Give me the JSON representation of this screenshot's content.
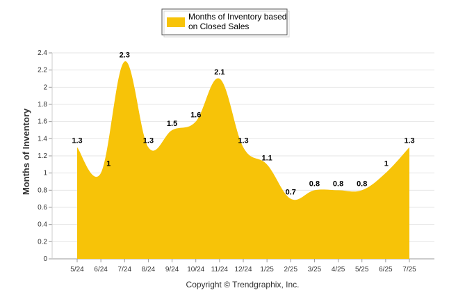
{
  "chart_data": {
    "type": "area",
    "categories": [
      "5/24",
      "6/24",
      "7/24",
      "8/24",
      "9/24",
      "10/24",
      "11/24",
      "12/24",
      "1/25",
      "2/25",
      "3/25",
      "4/25",
      "5/25",
      "6/25",
      "7/25"
    ],
    "series": [
      {
        "name": "Months of Inventory based on Closed Sales",
        "values": [
          1.3,
          1,
          2.3,
          1.3,
          1.5,
          1.6,
          2.1,
          1.3,
          1.1,
          0.7,
          0.8,
          0.8,
          0.8,
          1,
          1.3
        ],
        "labels": [
          "1.3",
          "1",
          "2.3",
          "1.3",
          "1.5",
          "1.6",
          "2.1",
          "1.3",
          "1.1",
          "0.7",
          "0.8",
          "0.8",
          "0.8",
          "1",
          "1.3"
        ]
      }
    ],
    "legend_lines": [
      "Months of Inventory based",
      "on Closed Sales"
    ],
    "ylabel": "Months of Inventory",
    "xlabel": "",
    "ylim": [
      0,
      2.4
    ],
    "yticks": [
      "0",
      "0.2",
      "0.4",
      "0.6",
      "0.8",
      "1",
      "1.2",
      "1.4",
      "1.6",
      "1.8",
      "2",
      "2.2",
      "2.4"
    ],
    "grid": true,
    "legend_position": "top-center",
    "color": "#F7C308",
    "copyright": "Copyright © Trendgraphix, Inc."
  }
}
